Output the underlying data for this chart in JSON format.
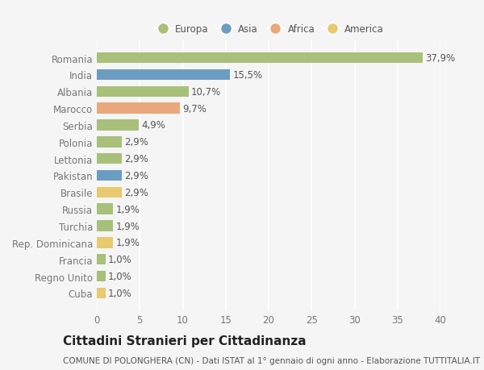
{
  "countries": [
    "Romania",
    "India",
    "Albania",
    "Marocco",
    "Serbia",
    "Polonia",
    "Lettonia",
    "Pakistan",
    "Brasile",
    "Russia",
    "Turchia",
    "Rep. Dominicana",
    "Francia",
    "Regno Unito",
    "Cuba"
  ],
  "values": [
    37.9,
    15.5,
    10.7,
    9.7,
    4.9,
    2.9,
    2.9,
    2.9,
    2.9,
    1.9,
    1.9,
    1.9,
    1.0,
    1.0,
    1.0
  ],
  "labels": [
    "37,9%",
    "15,5%",
    "10,7%",
    "9,7%",
    "4,9%",
    "2,9%",
    "2,9%",
    "2,9%",
    "2,9%",
    "1,9%",
    "1,9%",
    "1,9%",
    "1,0%",
    "1,0%",
    "1,0%"
  ],
  "colors": [
    "#a8c07a",
    "#6b9dc2",
    "#a8c07a",
    "#e8a87c",
    "#a8c07a",
    "#a8c07a",
    "#a8c07a",
    "#6b9dc2",
    "#e8c96e",
    "#a8c07a",
    "#a8c07a",
    "#e8c96e",
    "#a8c07a",
    "#a8c07a",
    "#e8c96e"
  ],
  "legend": [
    {
      "label": "Europa",
      "color": "#a8c07a"
    },
    {
      "label": "Asia",
      "color": "#6b9dc2"
    },
    {
      "label": "Africa",
      "color": "#e8a87c"
    },
    {
      "label": "America",
      "color": "#e8c96e"
    }
  ],
  "title": "Cittadini Stranieri per Cittadinanza",
  "subtitle": "COMUNE DI POLONGHERA (CN) - Dati ISTAT al 1° gennaio di ogni anno - Elaborazione TUTTITALIA.IT",
  "xlim": [
    0,
    40
  ],
  "xticks": [
    0,
    5,
    10,
    15,
    20,
    25,
    30,
    35,
    40
  ],
  "bg_color": "#f5f5f5",
  "grid_color": "#ffffff",
  "bar_height": 0.65,
  "label_fontsize": 8.5,
  "tick_fontsize": 8.5,
  "title_fontsize": 11,
  "subtitle_fontsize": 7.5
}
